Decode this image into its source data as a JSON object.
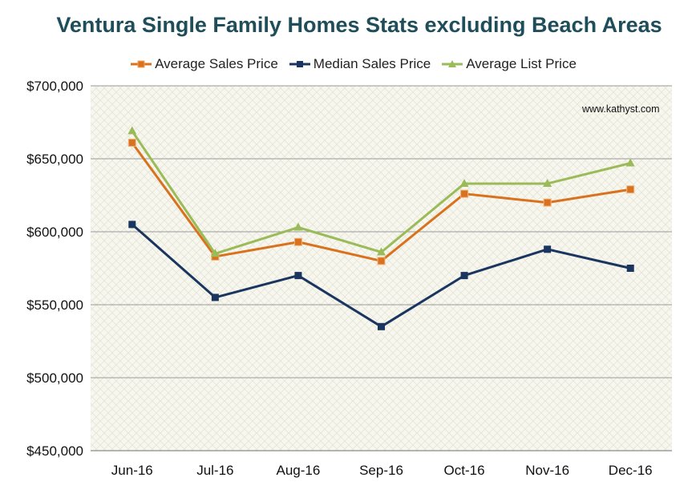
{
  "chart_data": {
    "type": "line",
    "title": "Ventura Single Family Homes Stats excluding Beach Areas",
    "categories": [
      "Jun-16",
      "Jul-16",
      "Aug-16",
      "Sep-16",
      "Oct-16",
      "Nov-16",
      "Dec-16"
    ],
    "series": [
      {
        "name": "Average Sales Price",
        "color": "#d9721e",
        "marker": "square",
        "values": [
          661000,
          583000,
          593000,
          580000,
          626000,
          620000,
          629000
        ]
      },
      {
        "name": "Median Sales Price",
        "color": "#1a3660",
        "marker": "square",
        "values": [
          605000,
          555000,
          570000,
          535000,
          570000,
          588000,
          575000
        ]
      },
      {
        "name": "Average List Price",
        "color": "#9bbb59",
        "marker": "triangle",
        "values": [
          669000,
          585000,
          603000,
          586000,
          633000,
          633000,
          647000
        ]
      }
    ],
    "yticks": [
      "$450,000",
      "$500,000",
      "$550,000",
      "$600,000",
      "$650,000",
      "$700,000"
    ],
    "ylim": [
      450000,
      700000
    ],
    "grid": true,
    "legend": "top",
    "annotation": "www.kathyst.com"
  }
}
